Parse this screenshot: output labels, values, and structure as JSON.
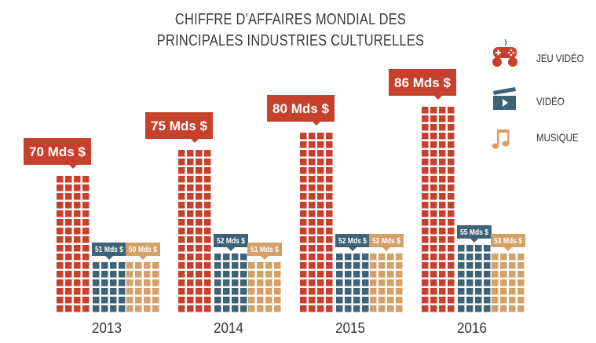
{
  "chart_data": {
    "type": "bar",
    "title": "CHIFFRE D'AFFAIRES MONDIAL DES PRINCIPALES INDUSTRIES CULTURELLES",
    "title_lines": [
      "CHIFFRE D'AFFAIRES MONDIAL DES",
      "PRINCIPALES INDUSTRIES CULTURELLES"
    ],
    "categories": [
      "2013",
      "2014",
      "2015",
      "2016"
    ],
    "series": [
      {
        "name": "JEU VIDÉO",
        "color": "#c6412d",
        "icon": "gamepad-icon",
        "values": [
          70,
          75,
          80,
          86
        ],
        "labels": [
          "70 Mds $",
          "75 Mds $",
          "80 Mds $",
          "86 Mds $"
        ]
      },
      {
        "name": "VIDÉO",
        "color": "#3e6377",
        "icon": "clapperboard-icon",
        "values": [
          51,
          52,
          52,
          55
        ],
        "labels": [
          "51 Mds $",
          "52 Mds $",
          "52 Mds $",
          "55 Mds $"
        ]
      },
      {
        "name": "MUSIQUE",
        "color": "#d3a068",
        "icon": "music-note-icon",
        "values": [
          50,
          51,
          52,
          53
        ],
        "labels": [
          "50 Mds $",
          "51 Mds $",
          "52 Mds $",
          "53 Mds $"
        ]
      }
    ],
    "unit": "Mds $",
    "legend": "right",
    "grid": false
  }
}
